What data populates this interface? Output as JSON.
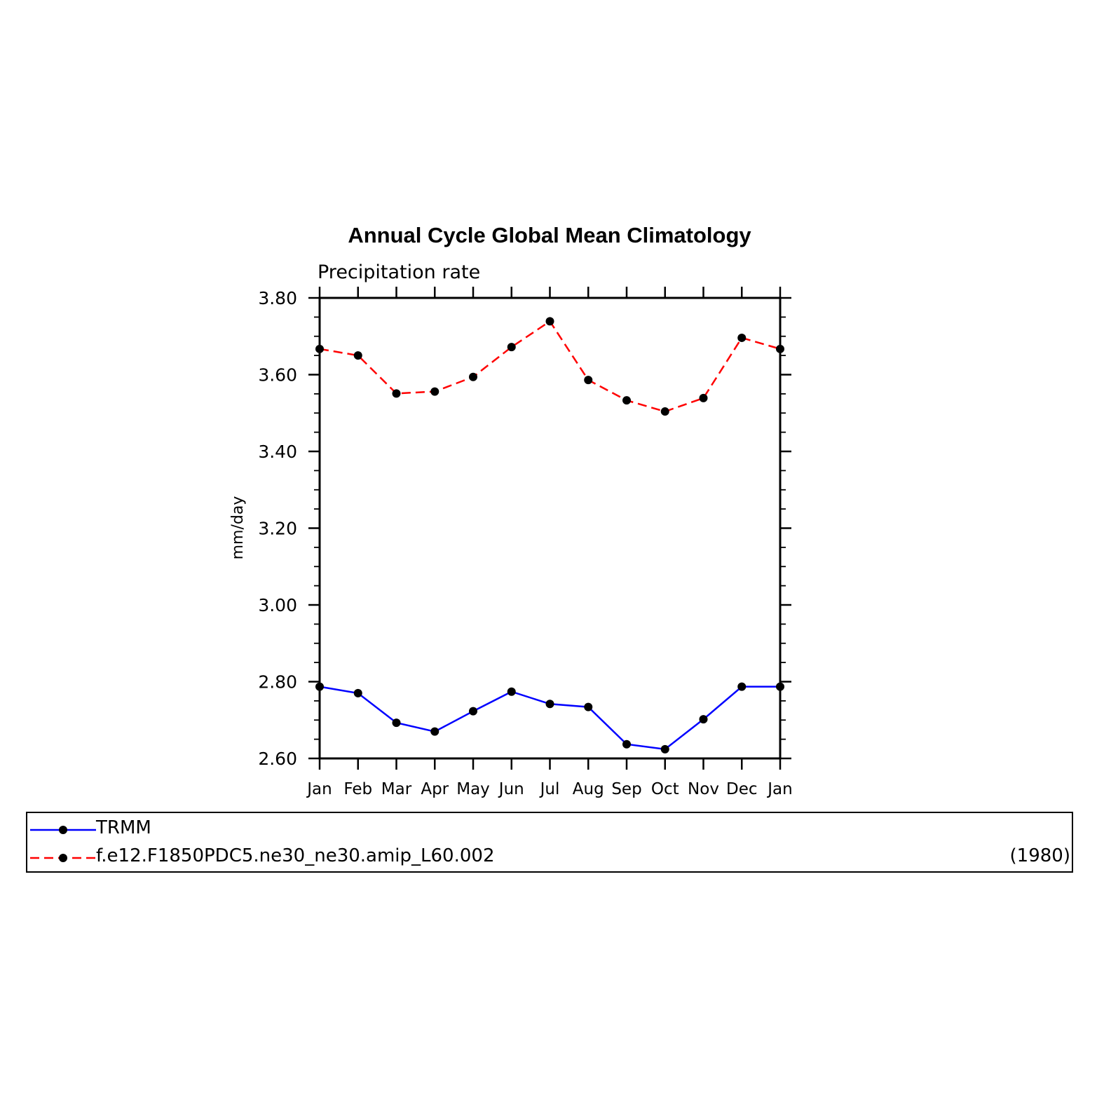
{
  "chart_data": {
    "type": "line",
    "title": "Annual Cycle Global Mean Climatology",
    "subtitle": "Precipitation rate",
    "xlabel": "",
    "ylabel": "mm/day",
    "categories": [
      "Jan",
      "Feb",
      "Mar",
      "Apr",
      "May",
      "Jun",
      "Jul",
      "Aug",
      "Sep",
      "Oct",
      "Nov",
      "Dec",
      "Jan"
    ],
    "ylim": [
      2.6,
      3.8
    ],
    "yticks": [
      "2.60",
      "2.80",
      "3.00",
      "3.20",
      "3.40",
      "3.60",
      "3.80"
    ],
    "grid": false,
    "legend_position": "bottom",
    "series": [
      {
        "name": "TRMM",
        "color": "#0000ff",
        "dash": "solid",
        "marker": "circle",
        "values": [
          2.787,
          2.77,
          2.693,
          2.67,
          2.723,
          2.774,
          2.742,
          2.734,
          2.637,
          2.624,
          2.702,
          2.787,
          2.787
        ]
      },
      {
        "name": "f.e12.F1850PDC5.ne30_ne30.amip_L60.002",
        "color": "#ff0000",
        "dash": "dashed",
        "marker": "circle",
        "values": [
          3.667,
          3.65,
          3.551,
          3.556,
          3.594,
          3.672,
          3.739,
          3.586,
          3.533,
          3.504,
          3.539,
          3.696,
          3.667
        ]
      }
    ]
  },
  "legend": {
    "items": [
      {
        "label": "TRMM"
      },
      {
        "label": "f.e12.F1850PDC5.ne30_ne30.amip_L60.002",
        "note": "(1980)"
      }
    ]
  }
}
